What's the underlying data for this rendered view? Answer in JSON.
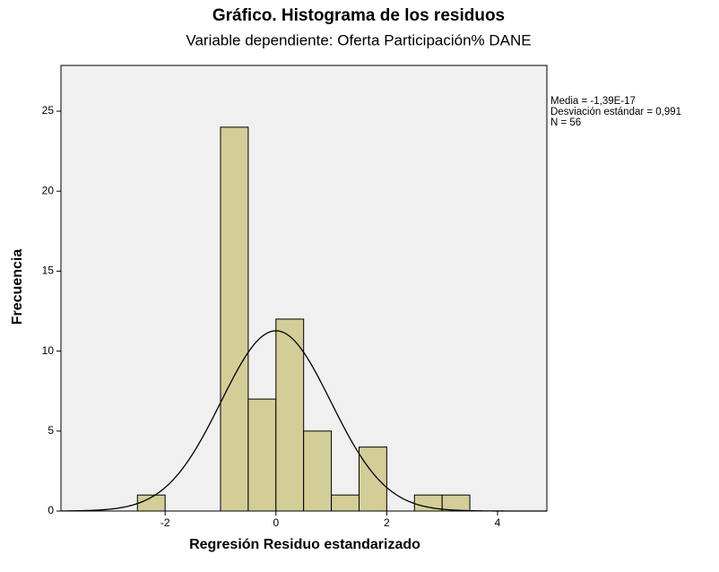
{
  "chart_data": {
    "type": "histogram",
    "title": "Gráfico. Histograma de los residuos",
    "subtitle": "Variable dependiente: Oferta Participación% DANE",
    "x_label": "Regresión Residuo estandarizado",
    "y_label": "Frecuencia",
    "annotations": [
      "Media = -1,39E-17",
      "Desviación estándar = 0,991",
      "N = 56"
    ],
    "bins": [
      -2.5,
      -2,
      -1.5,
      -1,
      -0.5,
      0,
      0.5,
      1,
      1.5,
      2,
      2.5,
      3,
      3.5
    ],
    "values": [
      1,
      0,
      0,
      24,
      7,
      12,
      5,
      1,
      4,
      0,
      1,
      1
    ],
    "color": "#d3ce97",
    "normal_curve": {
      "mean": -1.39e-17,
      "sd": 0.991,
      "n": 56
    },
    "xlim": [
      -3.88,
      4.89
    ],
    "ylim": [
      0,
      27.86
    ],
    "xticks": [
      -2,
      0,
      2,
      4
    ],
    "yticks": [
      0,
      5,
      10,
      15,
      20,
      25
    ]
  }
}
